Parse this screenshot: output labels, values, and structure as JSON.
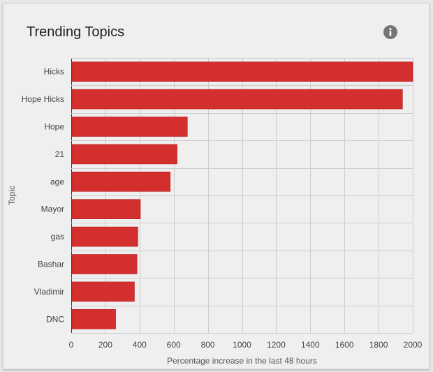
{
  "card": {
    "title": "Trending Topics",
    "info_icon": "info-icon"
  },
  "chart_data": {
    "type": "bar",
    "orientation": "horizontal",
    "categories": [
      "Hicks",
      "Hope Hicks",
      "Hope",
      "21",
      "age",
      "Mayor",
      "gas",
      "Bashar",
      "Vladimir",
      "DNC"
    ],
    "values": [
      2000,
      1940,
      680,
      620,
      580,
      405,
      390,
      385,
      370,
      260
    ],
    "xlabel": "Percentage increase in the last 48 hours",
    "ylabel": "Topic",
    "xlim": [
      0,
      2000
    ],
    "xticks": [
      0,
      200,
      400,
      600,
      800,
      1000,
      1200,
      1400,
      1600,
      1800,
      2000
    ],
    "grid": true,
    "legend": "none",
    "bar_color": "#d32f2f"
  }
}
